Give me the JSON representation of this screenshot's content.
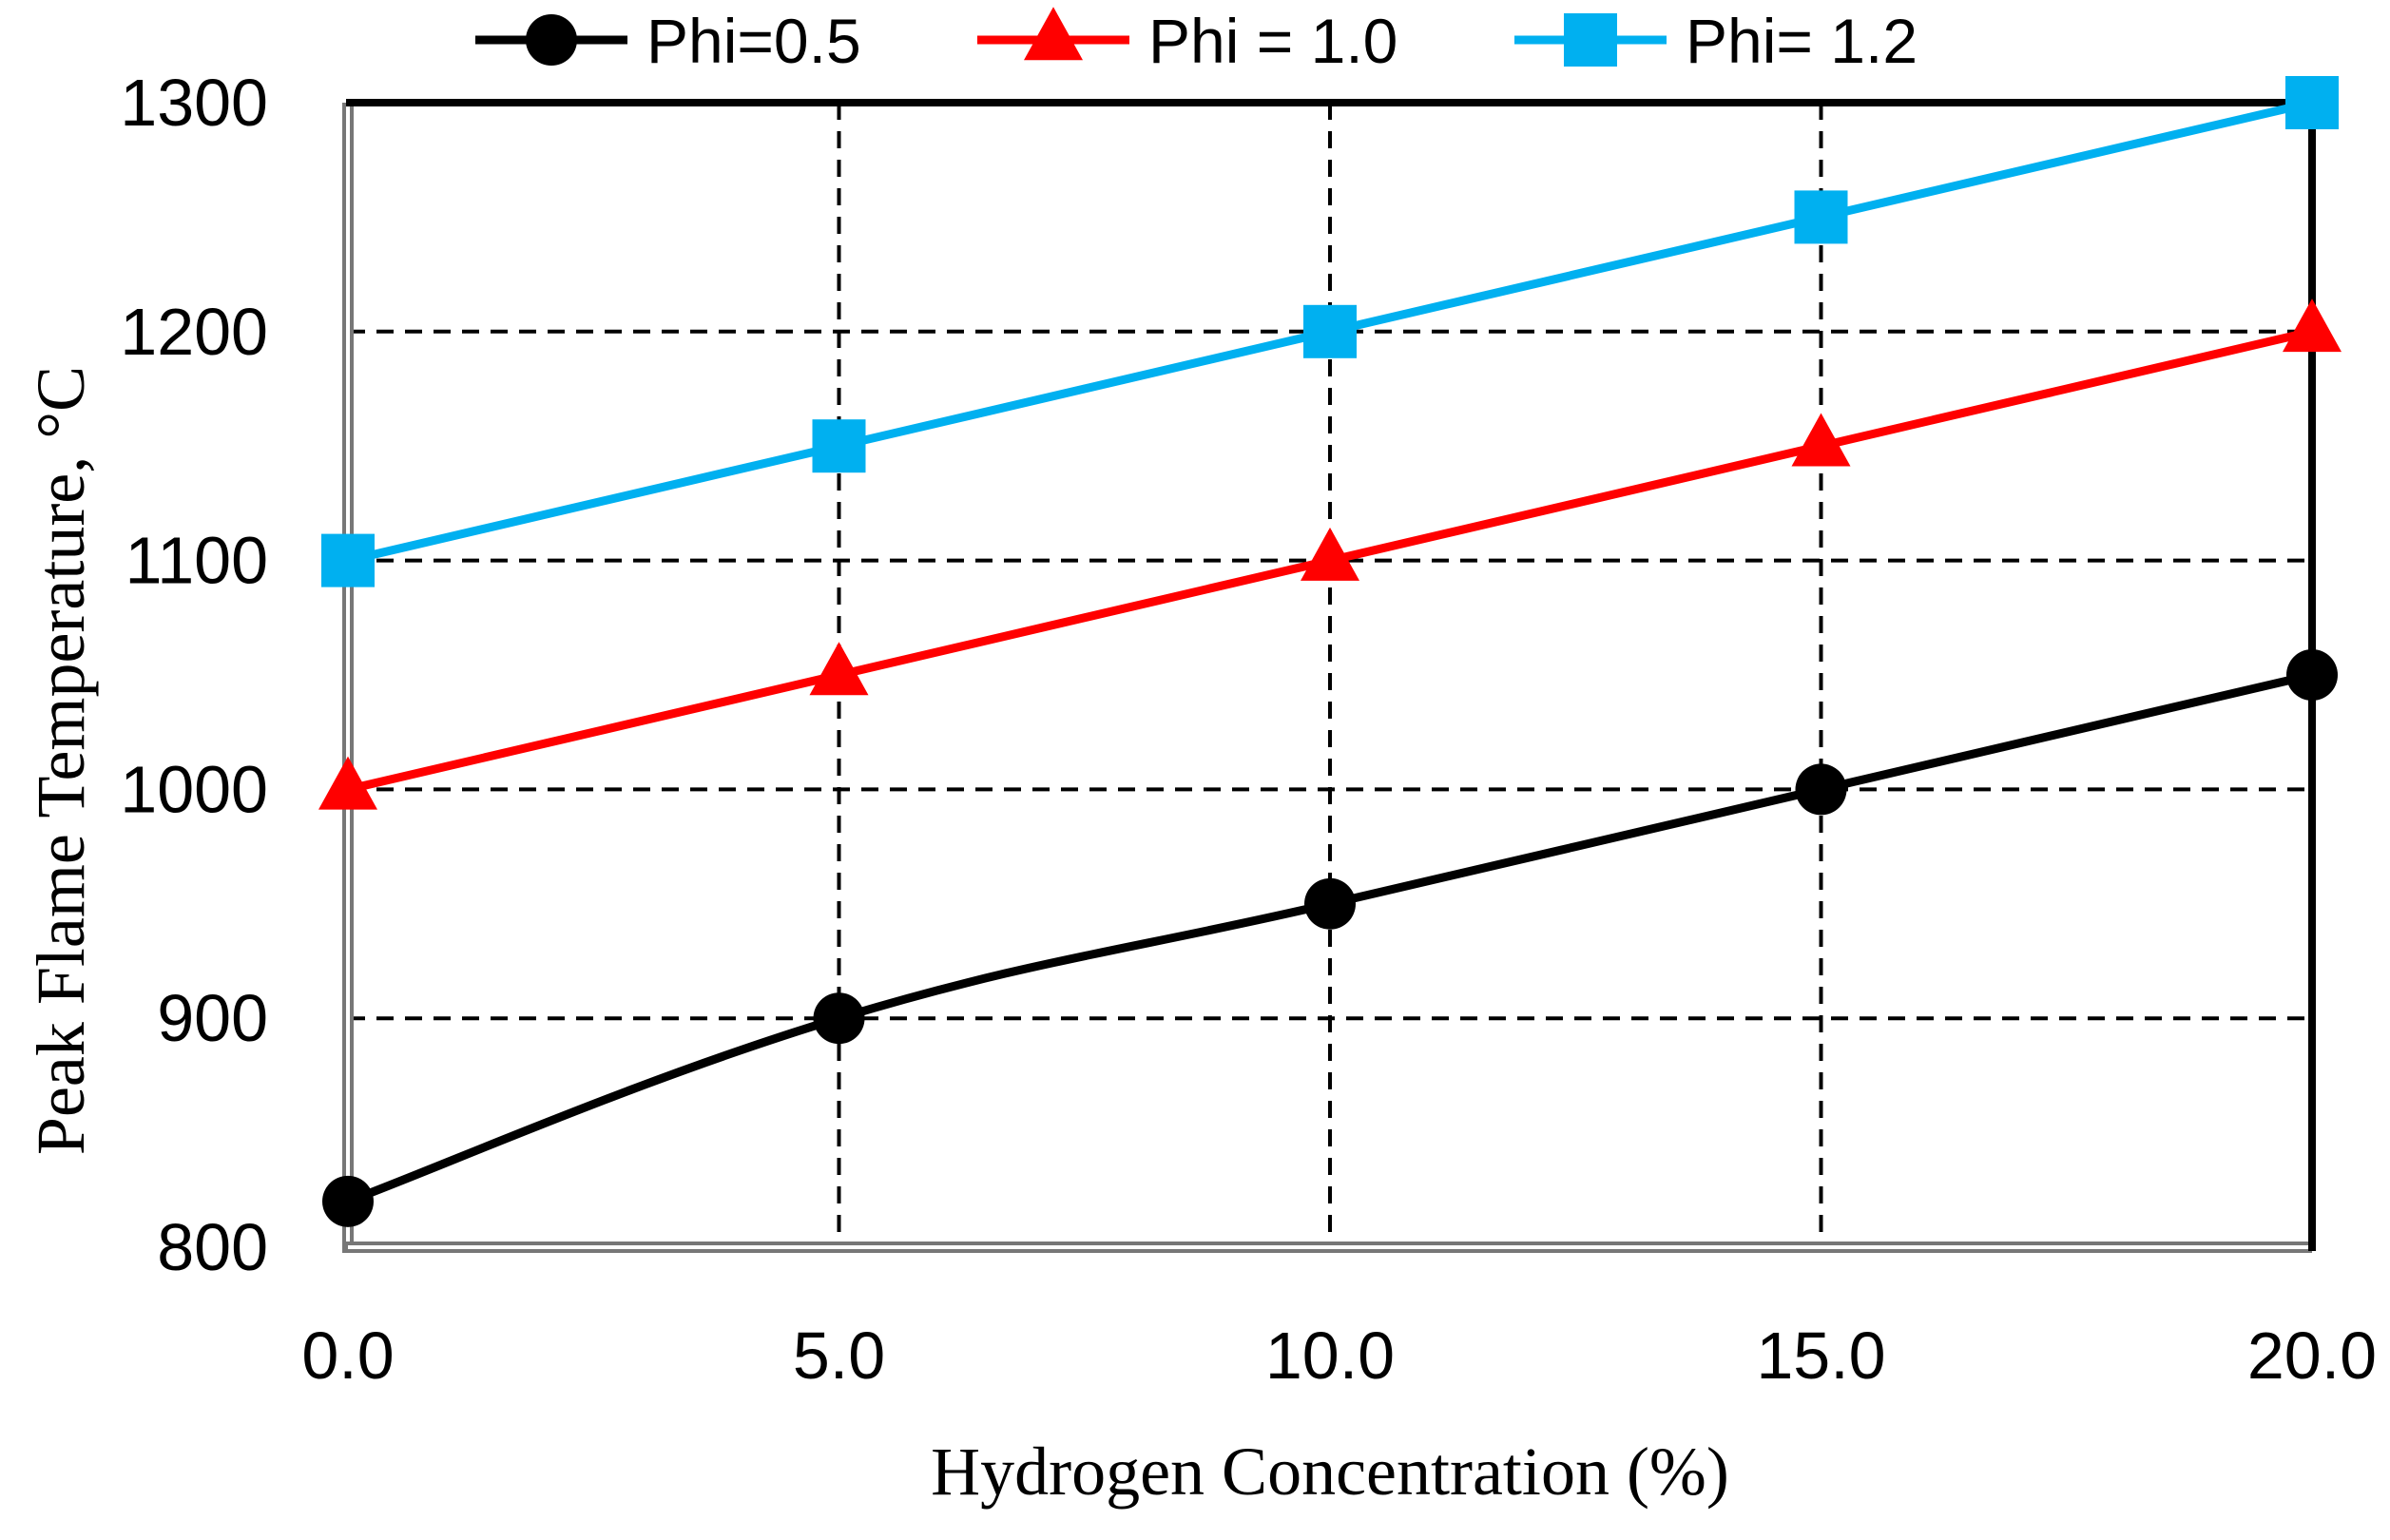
{
  "chart_data": {
    "type": "line",
    "title": "",
    "xlabel": "Hydrogen Concentration (%)",
    "ylabel": "Peak Flame Temperature, ",
    "ylabel_unit": "°C",
    "x": [
      0.0,
      5.0,
      10.0,
      15.0,
      20.0
    ],
    "x_tick_labels": [
      "0.0",
      "5.0",
      "10.0",
      "15.0",
      "20.0"
    ],
    "xlim": [
      0,
      20
    ],
    "ylim": [
      800,
      1300
    ],
    "y_ticks": [
      800,
      900,
      1000,
      1100,
      1200,
      1300
    ],
    "grid": "dashed, vertical at x=5,10,15; horizontal at y=900,1000,1100,1200",
    "legend_position": "top-center",
    "series": [
      {
        "name": "Phi=0.5",
        "color": "#000000",
        "marker": "circle",
        "smooth": true,
        "values": [
          820,
          900,
          950,
          1000,
          1050
        ]
      },
      {
        "name": "Phi = 1.0",
        "color": "#ff0000",
        "marker": "triangle",
        "smooth": false,
        "values": [
          1000,
          1050,
          1100,
          1150,
          1200
        ]
      },
      {
        "name": "Phi= 1.2",
        "color": "#00b0f0",
        "marker": "square",
        "smooth": false,
        "values": [
          1100,
          1150,
          1200,
          1250,
          1300
        ]
      }
    ]
  }
}
